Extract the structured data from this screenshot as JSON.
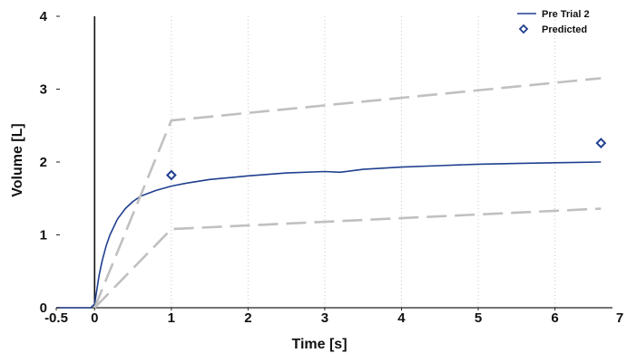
{
  "chart_data": {
    "type": "line",
    "title": "",
    "xlabel": "Time [s]",
    "ylabel": "Volume [L]",
    "xlim": [
      -0.5,
      6.75
    ],
    "ylim": [
      0,
      4
    ],
    "x_ticks": [
      -0.5,
      0,
      1,
      2,
      3,
      4,
      5,
      6,
      7
    ],
    "x_tick_labels": [
      "-0.5",
      "0",
      "1",
      "2",
      "3",
      "4",
      "5",
      "6",
      "7"
    ],
    "y_ticks": [
      0,
      1,
      2,
      3,
      4
    ],
    "y_tick_labels": [
      "0",
      "1",
      "2",
      "3",
      "4"
    ],
    "grid": {
      "x": true,
      "y": false,
      "style": "dotted"
    },
    "legend_position": "top-right",
    "legend": [
      "Pre Trial 2",
      "Predicted"
    ],
    "series": [
      {
        "name": "Pre Trial 2",
        "color": "#1f3f8f",
        "style": "solid",
        "x": [
          -0.5,
          -0.05,
          0,
          0.03,
          0.06,
          0.1,
          0.15,
          0.2,
          0.3,
          0.4,
          0.5,
          0.6,
          0.8,
          1.0,
          1.2,
          1.5,
          2.0,
          2.5,
          3.0,
          3.2,
          3.5,
          4.0,
          4.5,
          5.0,
          5.5,
          6.0,
          6.6
        ],
        "y": [
          0,
          0,
          0.05,
          0.25,
          0.45,
          0.65,
          0.85,
          1.0,
          1.22,
          1.36,
          1.46,
          1.53,
          1.61,
          1.67,
          1.71,
          1.76,
          1.81,
          1.85,
          1.87,
          1.86,
          1.9,
          1.93,
          1.95,
          1.97,
          1.98,
          1.99,
          2.0
        ]
      },
      {
        "name": "Predicted",
        "color": "#1f3f8f",
        "style": "marker",
        "marker": "diamond",
        "x": [
          1.0,
          6.6
        ],
        "y": [
          1.82,
          2.26
        ]
      },
      {
        "color": "#c0c0c0",
        "style": "dashed",
        "x": [
          0,
          1.0,
          6.6
        ],
        "y": [
          0,
          2.57,
          3.15
        ]
      },
      {
        "color": "#c0c0c0",
        "style": "dashed",
        "x": [
          0,
          1.0,
          6.6
        ],
        "y": [
          0,
          1.08,
          1.36
        ]
      }
    ],
    "y_axis_line_x": 0
  }
}
